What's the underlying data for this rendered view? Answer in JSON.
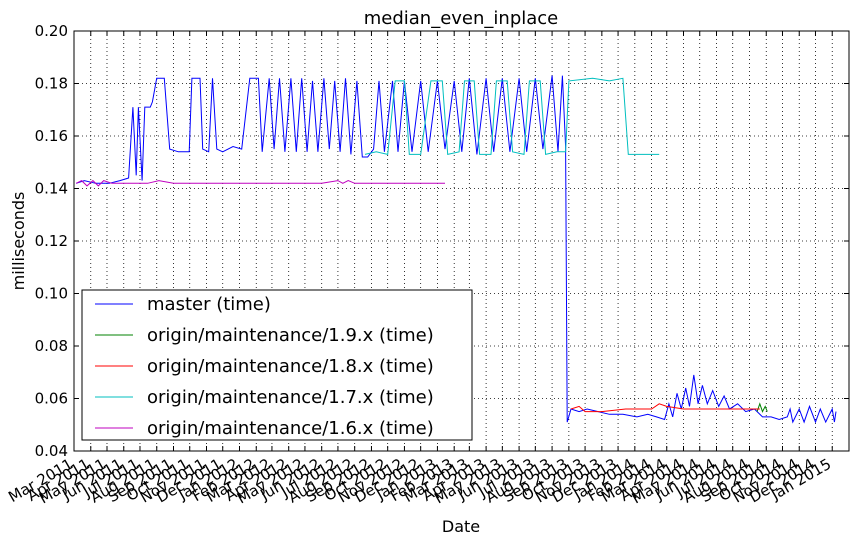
{
  "chart_data": {
    "type": "line",
    "title": "median_even_inplace",
    "xlabel": "Date",
    "ylabel": "milliseconds",
    "ylim": [
      0.04,
      0.2
    ],
    "xlim": [
      "2011-03-01",
      "2015-02-01"
    ],
    "grid": true,
    "legend_position": "bottom-left",
    "y_ticks": [
      "0.04",
      "0.06",
      "0.08",
      "0.10",
      "0.12",
      "0.14",
      "0.16",
      "0.18",
      "0.20"
    ],
    "x_ticks": [
      {
        "date": "2011-03-01",
        "label": "Mar 2011"
      },
      {
        "date": "2011-04-01",
        "label": "Apr 2011"
      },
      {
        "date": "2011-05-01",
        "label": "May 2011"
      },
      {
        "date": "2011-06-01",
        "label": "Jun 2011"
      },
      {
        "date": "2011-07-01",
        "label": "Jul 2011"
      },
      {
        "date": "2011-08-01",
        "label": "Aug 2011"
      },
      {
        "date": "2011-09-01",
        "label": "Sep 2011"
      },
      {
        "date": "2011-10-01",
        "label": "Oct 2011"
      },
      {
        "date": "2011-11-01",
        "label": "Nov 2011"
      },
      {
        "date": "2011-12-01",
        "label": "Dec 2011"
      },
      {
        "date": "2012-01-01",
        "label": "Jan 2012"
      },
      {
        "date": "2012-02-01",
        "label": "Feb 2012"
      },
      {
        "date": "2012-03-01",
        "label": "Mar 2012"
      },
      {
        "date": "2012-04-01",
        "label": "Apr 2012"
      },
      {
        "date": "2012-05-01",
        "label": "May 2012"
      },
      {
        "date": "2012-06-01",
        "label": "Jun 2012"
      },
      {
        "date": "2012-07-01",
        "label": "Jul 2012"
      },
      {
        "date": "2012-08-01",
        "label": "Aug 2012"
      },
      {
        "date": "2012-09-01",
        "label": "Sep 2012"
      },
      {
        "date": "2012-10-01",
        "label": "Oct 2012"
      },
      {
        "date": "2012-11-01",
        "label": "Nov 2012"
      },
      {
        "date": "2012-12-01",
        "label": "Dec 2012"
      },
      {
        "date": "2013-01-01",
        "label": "Jan 2013"
      },
      {
        "date": "2013-02-01",
        "label": "Feb 2013"
      },
      {
        "date": "2013-03-01",
        "label": "Mar 2013"
      },
      {
        "date": "2013-04-01",
        "label": "Apr 2013"
      },
      {
        "date": "2013-05-01",
        "label": "May 2013"
      },
      {
        "date": "2013-06-01",
        "label": "Jun 2013"
      },
      {
        "date": "2013-07-01",
        "label": "Jul 2013"
      },
      {
        "date": "2013-08-01",
        "label": "Aug 2013"
      },
      {
        "date": "2013-09-01",
        "label": "Sep 2013"
      },
      {
        "date": "2013-10-01",
        "label": "Oct 2013"
      },
      {
        "date": "2013-11-01",
        "label": "Nov 2013"
      },
      {
        "date": "2013-12-01",
        "label": "Dec 2013"
      },
      {
        "date": "2014-01-01",
        "label": "Jan 2014"
      },
      {
        "date": "2014-02-01",
        "label": "Feb 2014"
      },
      {
        "date": "2014-03-01",
        "label": "Mar 2014"
      },
      {
        "date": "2014-04-01",
        "label": "Apr 2014"
      },
      {
        "date": "2014-05-01",
        "label": "May 2014"
      },
      {
        "date": "2014-06-01",
        "label": "Jun 2014"
      },
      {
        "date": "2014-07-01",
        "label": "Jul 2014"
      },
      {
        "date": "2014-08-01",
        "label": "Aug 2014"
      },
      {
        "date": "2014-09-01",
        "label": "Sep 2014"
      },
      {
        "date": "2014-10-01",
        "label": "Oct 2014"
      },
      {
        "date": "2014-11-01",
        "label": "Nov 2014"
      },
      {
        "date": "2014-12-01",
        "label": "Dec 2014"
      },
      {
        "date": "2015-01-01",
        "label": "Jan 2015"
      }
    ],
    "series": [
      {
        "name": "master (time)",
        "color": "#0000ff",
        "points": [
          [
            "2011-03-05",
            0.142
          ],
          [
            "2011-03-20",
            0.143
          ],
          [
            "2011-04-10",
            0.142
          ],
          [
            "2011-05-05",
            0.142
          ],
          [
            "2011-05-25",
            0.143
          ],
          [
            "2011-06-10",
            0.144
          ],
          [
            "2011-06-18",
            0.171
          ],
          [
            "2011-06-24",
            0.145
          ],
          [
            "2011-06-28",
            0.171
          ],
          [
            "2011-07-05",
            0.143
          ],
          [
            "2011-07-10",
            0.171
          ],
          [
            "2011-07-20",
            0.171
          ],
          [
            "2011-07-24",
            0.173
          ],
          [
            "2011-08-01",
            0.182
          ],
          [
            "2011-08-15",
            0.182
          ],
          [
            "2011-08-25",
            0.155
          ],
          [
            "2011-09-10",
            0.154
          ],
          [
            "2011-09-30",
            0.154
          ],
          [
            "2011-10-05",
            0.182
          ],
          [
            "2011-10-20",
            0.182
          ],
          [
            "2011-10-25",
            0.155
          ],
          [
            "2011-11-05",
            0.154
          ],
          [
            "2011-11-12",
            0.182
          ],
          [
            "2011-11-20",
            0.155
          ],
          [
            "2011-12-01",
            0.154
          ],
          [
            "2011-12-20",
            0.156
          ],
          [
            "2012-01-05",
            0.155
          ],
          [
            "2012-01-20",
            0.182
          ],
          [
            "2012-02-05",
            0.182
          ],
          [
            "2012-02-12",
            0.154
          ],
          [
            "2012-02-25",
            0.182
          ],
          [
            "2012-03-05",
            0.155
          ],
          [
            "2012-03-15",
            0.182
          ],
          [
            "2012-03-25",
            0.154
          ],
          [
            "2012-04-05",
            0.182
          ],
          [
            "2012-04-15",
            0.154
          ],
          [
            "2012-04-25",
            0.182
          ],
          [
            "2012-05-05",
            0.154
          ],
          [
            "2012-05-15",
            0.181
          ],
          [
            "2012-05-25",
            0.154
          ],
          [
            "2012-06-05",
            0.182
          ],
          [
            "2012-06-15",
            0.155
          ],
          [
            "2012-06-25",
            0.181
          ],
          [
            "2012-07-05",
            0.154
          ],
          [
            "2012-07-15",
            0.182
          ],
          [
            "2012-07-25",
            0.153
          ],
          [
            "2012-08-05",
            0.181
          ],
          [
            "2012-08-15",
            0.152
          ],
          [
            "2012-08-25",
            0.152
          ],
          [
            "2012-09-05",
            0.155
          ],
          [
            "2012-09-15",
            0.181
          ],
          [
            "2012-09-25",
            0.154
          ],
          [
            "2012-10-10",
            0.181
          ],
          [
            "2012-10-20",
            0.154
          ],
          [
            "2012-11-01",
            0.181
          ],
          [
            "2012-11-15",
            0.154
          ],
          [
            "2012-12-01",
            0.181
          ],
          [
            "2012-12-15",
            0.154
          ],
          [
            "2013-01-01",
            0.181
          ],
          [
            "2013-01-15",
            0.155
          ],
          [
            "2013-02-01",
            0.181
          ],
          [
            "2013-02-15",
            0.154
          ],
          [
            "2013-03-01",
            0.182
          ],
          [
            "2013-03-15",
            0.153
          ],
          [
            "2013-04-01",
            0.182
          ],
          [
            "2013-04-15",
            0.154
          ],
          [
            "2013-05-01",
            0.182
          ],
          [
            "2013-05-15",
            0.154
          ],
          [
            "2013-06-01",
            0.182
          ],
          [
            "2013-06-15",
            0.154
          ],
          [
            "2013-07-01",
            0.182
          ],
          [
            "2013-07-15",
            0.155
          ],
          [
            "2013-08-01",
            0.183
          ],
          [
            "2013-08-12",
            0.154
          ],
          [
            "2013-08-20",
            0.183
          ],
          [
            "2013-08-26",
            0.156
          ],
          [
            "2013-08-29",
            0.051
          ],
          [
            "2013-09-05",
            0.056
          ],
          [
            "2013-09-20",
            0.055
          ],
          [
            "2013-10-05",
            0.056
          ],
          [
            "2013-10-25",
            0.055
          ],
          [
            "2013-11-15",
            0.054
          ],
          [
            "2013-12-10",
            0.054
          ],
          [
            "2014-01-05",
            0.053
          ],
          [
            "2014-01-25",
            0.054
          ],
          [
            "2014-02-10",
            0.053
          ],
          [
            "2014-02-25",
            0.052
          ],
          [
            "2014-03-05",
            0.058
          ],
          [
            "2014-03-12",
            0.053
          ],
          [
            "2014-03-20",
            0.062
          ],
          [
            "2014-03-28",
            0.056
          ],
          [
            "2014-04-05",
            0.064
          ],
          [
            "2014-04-12",
            0.057
          ],
          [
            "2014-04-20",
            0.069
          ],
          [
            "2014-04-28",
            0.058
          ],
          [
            "2014-05-06",
            0.065
          ],
          [
            "2014-05-15",
            0.058
          ],
          [
            "2014-05-25",
            0.063
          ],
          [
            "2014-06-05",
            0.057
          ],
          [
            "2014-06-15",
            0.061
          ],
          [
            "2014-06-25",
            0.056
          ],
          [
            "2014-07-10",
            0.058
          ],
          [
            "2014-07-25",
            0.055
          ],
          [
            "2014-08-10",
            0.056
          ],
          [
            "2014-08-25",
            0.053
          ],
          [
            "2014-09-10",
            0.053
          ],
          [
            "2014-09-25",
            0.052
          ],
          [
            "2014-10-10",
            0.053
          ],
          [
            "2014-10-15",
            0.056
          ],
          [
            "2014-10-20",
            0.051
          ],
          [
            "2014-11-01",
            0.056
          ],
          [
            "2014-11-10",
            0.051
          ],
          [
            "2014-11-20",
            0.057
          ],
          [
            "2014-12-01",
            0.051
          ],
          [
            "2014-12-10",
            0.056
          ],
          [
            "2014-12-20",
            0.051
          ],
          [
            "2015-01-01",
            0.056
          ],
          [
            "2015-01-05",
            0.051
          ],
          [
            "2015-01-08",
            0.055
          ]
        ]
      },
      {
        "name": "origin/maintenance/1.9.x (time)",
        "color": "#008000",
        "points": [
          [
            "2014-08-15",
            0.055
          ],
          [
            "2014-08-20",
            0.058
          ],
          [
            "2014-08-25",
            0.055
          ],
          [
            "2014-08-30",
            0.057
          ],
          [
            "2014-09-03",
            0.055
          ]
        ]
      },
      {
        "name": "origin/maintenance/1.8.x (time)",
        "color": "#ff0000",
        "points": [
          [
            "2013-09-05",
            0.056
          ],
          [
            "2013-09-20",
            0.057
          ],
          [
            "2013-10-01",
            0.055
          ],
          [
            "2013-11-01",
            0.055
          ],
          [
            "2013-12-15",
            0.056
          ],
          [
            "2014-02-01",
            0.056
          ],
          [
            "2014-02-15",
            0.058
          ],
          [
            "2014-03-01",
            0.057
          ],
          [
            "2014-04-01",
            0.056
          ],
          [
            "2014-05-01",
            0.056
          ],
          [
            "2014-06-01",
            0.056
          ],
          [
            "2014-07-01",
            0.056
          ],
          [
            "2014-08-01",
            0.056
          ],
          [
            "2014-08-20",
            0.056
          ]
        ]
      },
      {
        "name": "origin/maintenance/1.7.x (time)",
        "color": "#00bfbf",
        "points": [
          [
            "2012-08-20",
            0.153
          ],
          [
            "2012-09-10",
            0.154
          ],
          [
            "2012-10-01",
            0.153
          ],
          [
            "2012-10-15",
            0.181
          ],
          [
            "2012-11-01",
            0.181
          ],
          [
            "2012-11-10",
            0.153
          ],
          [
            "2012-12-01",
            0.153
          ],
          [
            "2012-12-20",
            0.181
          ],
          [
            "2013-01-10",
            0.181
          ],
          [
            "2013-01-20",
            0.153
          ],
          [
            "2013-02-10",
            0.154
          ],
          [
            "2013-02-20",
            0.181
          ],
          [
            "2013-03-10",
            0.181
          ],
          [
            "2013-03-20",
            0.153
          ],
          [
            "2013-04-10",
            0.153
          ],
          [
            "2013-04-20",
            0.181
          ],
          [
            "2013-05-10",
            0.181
          ],
          [
            "2013-05-20",
            0.154
          ],
          [
            "2013-06-10",
            0.153
          ],
          [
            "2013-06-20",
            0.181
          ],
          [
            "2013-07-10",
            0.181
          ],
          [
            "2013-07-20",
            0.153
          ],
          [
            "2013-08-10",
            0.154
          ],
          [
            "2013-08-26",
            0.154
          ],
          [
            "2013-09-01",
            0.181
          ],
          [
            "2013-10-15",
            0.182
          ],
          [
            "2013-11-15",
            0.181
          ],
          [
            "2013-12-10",
            0.182
          ],
          [
            "2013-12-20",
            0.153
          ],
          [
            "2014-01-20",
            0.153
          ],
          [
            "2014-02-15",
            0.153
          ]
        ]
      },
      {
        "name": "origin/maintenance/1.6.x (time)",
        "color": "#bf00bf",
        "points": [
          [
            "2011-03-05",
            0.142
          ],
          [
            "2011-03-15",
            0.143
          ],
          [
            "2011-03-25",
            0.141
          ],
          [
            "2011-04-05",
            0.143
          ],
          [
            "2011-04-15",
            0.141
          ],
          [
            "2011-04-25",
            0.143
          ],
          [
            "2011-05-10",
            0.142
          ],
          [
            "2011-06-01",
            0.142
          ],
          [
            "2011-07-15",
            0.142
          ],
          [
            "2011-08-05",
            0.143
          ],
          [
            "2011-09-01",
            0.142
          ],
          [
            "2011-12-01",
            0.142
          ],
          [
            "2012-03-01",
            0.142
          ],
          [
            "2012-06-01",
            0.142
          ],
          [
            "2012-07-01",
            0.143
          ],
          [
            "2012-07-10",
            0.142
          ],
          [
            "2012-07-20",
            0.143
          ],
          [
            "2012-08-01",
            0.142
          ],
          [
            "2012-09-01",
            0.142
          ],
          [
            "2012-11-01",
            0.142
          ],
          [
            "2012-12-15",
            0.142
          ],
          [
            "2013-01-15",
            0.142
          ]
        ]
      }
    ]
  }
}
